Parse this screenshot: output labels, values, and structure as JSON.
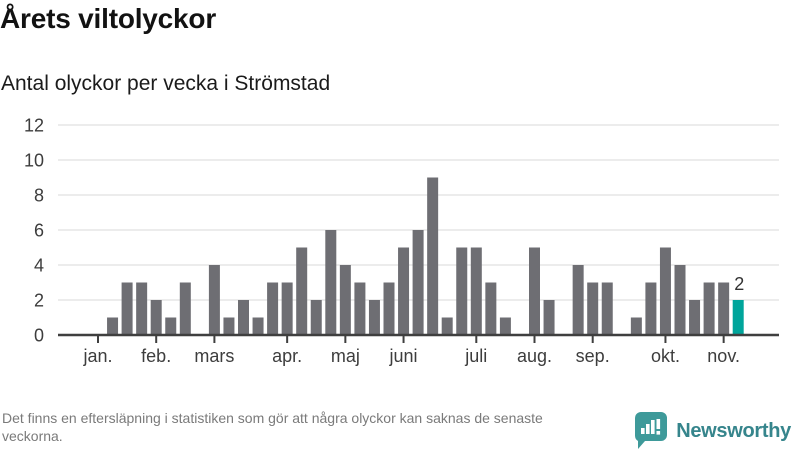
{
  "header": {
    "title": "Årets viltolyckor",
    "subtitle": "Antal olyckor per vecka i Strömstad"
  },
  "chart_data": {
    "type": "bar",
    "title": "Årets viltolyckor",
    "subtitle": "Antal olyckor per vecka i Strömstad",
    "x_unit": "week",
    "values": [
      0,
      1,
      3,
      3,
      2,
      1,
      3,
      0,
      4,
      1,
      2,
      1,
      3,
      3,
      5,
      2,
      6,
      4,
      3,
      2,
      3,
      5,
      6,
      9,
      1,
      5,
      5,
      3,
      1,
      0,
      5,
      2,
      0,
      4,
      3,
      3,
      0,
      1,
      3,
      5,
      4,
      2,
      3,
      3,
      2
    ],
    "month_ticks": [
      {
        "label": "jan.",
        "index": 0
      },
      {
        "label": "feb.",
        "index": 4
      },
      {
        "label": "mars",
        "index": 8
      },
      {
        "label": "apr.",
        "index": 13
      },
      {
        "label": "maj",
        "index": 17
      },
      {
        "label": "juni",
        "index": 21
      },
      {
        "label": "juli",
        "index": 26
      },
      {
        "label": "aug.",
        "index": 30
      },
      {
        "label": "sep.",
        "index": 34
      },
      {
        "label": "okt.",
        "index": 39
      },
      {
        "label": "nov.",
        "index": 43
      }
    ],
    "yticks": [
      0,
      2,
      4,
      6,
      8,
      10,
      12
    ],
    "ylim": [
      0,
      12
    ],
    "grid": true,
    "legend": "none",
    "bar_color": "#6e6e73",
    "highlight_color": "#00a59b",
    "highlight_last": true,
    "last_value_label": "2"
  },
  "footer": {
    "note": "Det finns en eftersläpning i statistiken som gör att några olyckor kan saknas de senaste veckorna.",
    "brand": "Newsworthy",
    "brand_color": "#36858c",
    "brand_icon_color": "#3e9a9a"
  }
}
